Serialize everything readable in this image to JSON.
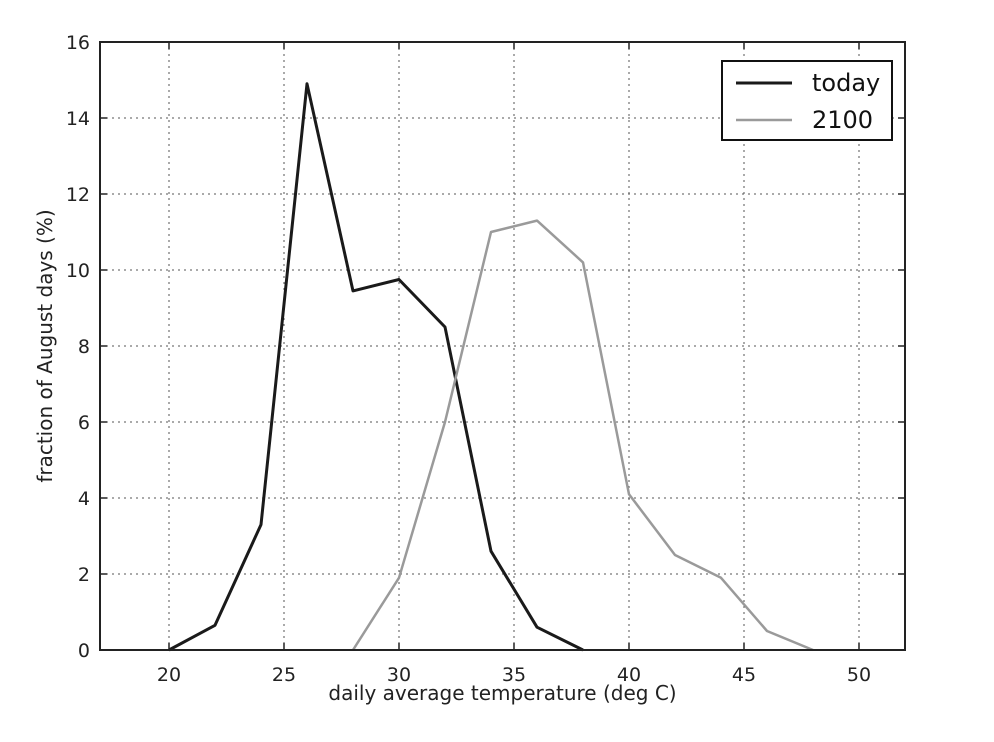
{
  "chart_data": {
    "type": "line",
    "title": "",
    "xlabel": "daily average temperature (deg C)",
    "ylabel": "fraction of August days (%)",
    "xlim": [
      17,
      52
    ],
    "ylim": [
      0,
      16
    ],
    "xticks": [
      20,
      25,
      30,
      35,
      40,
      45,
      50
    ],
    "yticks": [
      0,
      2,
      4,
      6,
      8,
      10,
      12,
      14,
      16
    ],
    "grid": true,
    "legend": {
      "position": "top-right"
    },
    "series": [
      {
        "name": "today",
        "color": "#1a1a1a",
        "x": [
          20,
          22,
          24,
          26,
          28,
          30,
          32,
          34,
          36,
          38
        ],
        "y": [
          0.0,
          0.65,
          3.3,
          14.9,
          9.45,
          9.75,
          8.5,
          2.6,
          0.6,
          0.0
        ]
      },
      {
        "name": "2100",
        "color": "#9a9a9a",
        "x": [
          28,
          30,
          32,
          34,
          36,
          38,
          40,
          42,
          44,
          46,
          48
        ],
        "y": [
          0.0,
          1.9,
          6.0,
          11.0,
          11.3,
          10.2,
          4.1,
          2.5,
          1.9,
          0.5,
          0.0
        ]
      }
    ]
  }
}
